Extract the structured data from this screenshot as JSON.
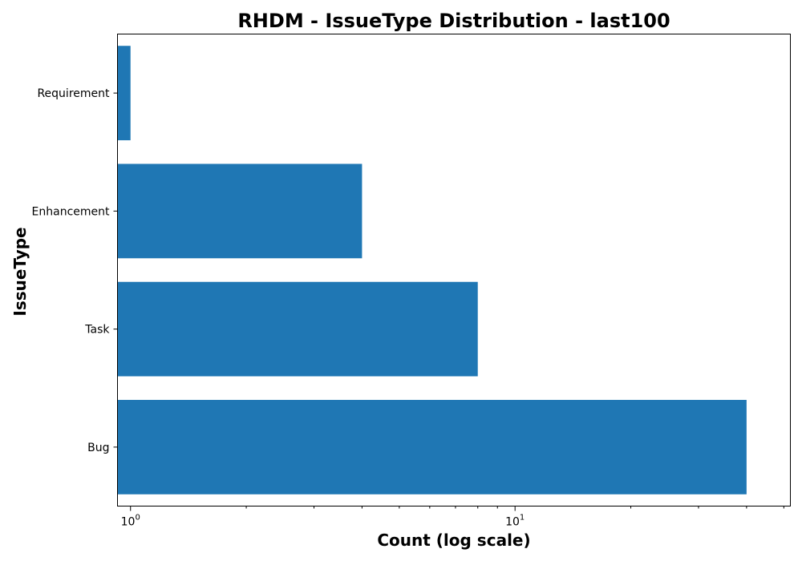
{
  "chart_data": {
    "type": "bar",
    "orientation": "horizontal",
    "title": "RHDM - IssueType Distribution - last100",
    "xlabel": "Count (log scale)",
    "ylabel": "IssueType",
    "x_scale": "log",
    "xlim": [
      0.925,
      52
    ],
    "x_ticks": [
      {
        "value": 1,
        "base": "10",
        "exp": "0"
      },
      {
        "value": 10,
        "base": "10",
        "exp": "1"
      }
    ],
    "categories": [
      "Requirement",
      "Enhancement",
      "Task",
      "Bug"
    ],
    "values": [
      1,
      4,
      8,
      40
    ],
    "bar_color": "#1f77b4",
    "grid": false
  }
}
